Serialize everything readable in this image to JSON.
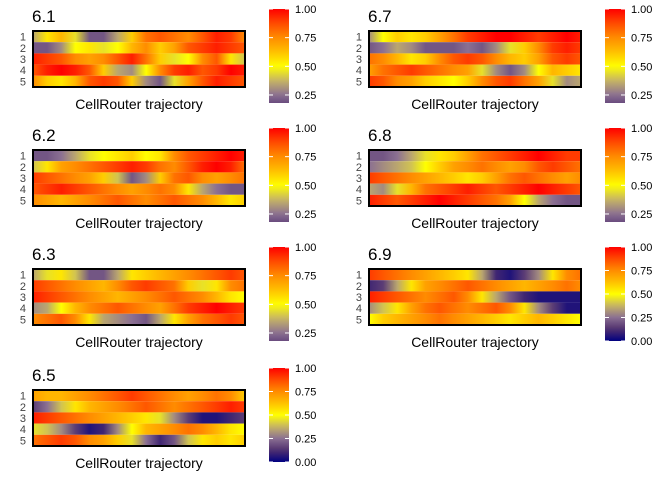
{
  "colors": {
    "stops": [
      "#000080",
      "#50306e",
      "#8b7092",
      "#c6b466",
      "#ffff00",
      "#ffc000",
      "#ff8c00",
      "#ff4a00",
      "#ff0000"
    ]
  },
  "chart_data": [
    {
      "type": "heatmap",
      "title": "6.1",
      "xlabel": "CellRouter trajectory",
      "y_categories": [
        "1",
        "2",
        "3",
        "4",
        "5"
      ],
      "colorbar": {
        "ticks": [
          "0.25",
          "0.50",
          "0.75",
          "1.00"
        ],
        "range": [
          0.18,
          1.0
        ]
      },
      "rows": [
        [
          0.35,
          0.55,
          0.65,
          0.45,
          0.2,
          0.2,
          0.35,
          0.6,
          0.8,
          0.85,
          0.8,
          0.75,
          0.85,
          0.95,
          0.9,
          0.75
        ],
        [
          0.2,
          0.2,
          0.3,
          0.5,
          0.55,
          0.45,
          0.5,
          0.65,
          0.75,
          0.6,
          0.7,
          0.85,
          0.9,
          0.95,
          0.9,
          0.85
        ],
        [
          0.95,
          0.9,
          0.85,
          0.75,
          0.7,
          0.75,
          0.85,
          0.95,
          0.8,
          0.6,
          0.45,
          0.5,
          0.75,
          0.85,
          0.55,
          0.4
        ],
        [
          0.85,
          0.95,
          1.0,
          0.95,
          0.85,
          0.6,
          0.35,
          0.3,
          0.5,
          0.75,
          0.9,
          0.95,
          0.85,
          0.9,
          1.0,
          0.95
        ],
        [
          0.75,
          0.6,
          0.55,
          0.65,
          0.85,
          0.9,
          0.85,
          0.6,
          0.3,
          0.2,
          0.45,
          0.7,
          0.85,
          0.95,
          0.9,
          0.85
        ]
      ]
    },
    {
      "type": "heatmap",
      "title": "6.7",
      "xlabel": "CellRouter trajectory",
      "y_categories": [
        "1",
        "2",
        "3",
        "4",
        "5"
      ],
      "colorbar": {
        "ticks": [
          "0.25",
          "0.50",
          "0.75",
          "1.00"
        ],
        "range": [
          0.18,
          1.0
        ]
      },
      "rows": [
        [
          0.3,
          0.5,
          0.6,
          0.55,
          0.6,
          0.7,
          0.8,
          0.9,
          0.95,
          1.0,
          1.0,
          0.95,
          0.9,
          0.95,
          1.0,
          0.95
        ],
        [
          0.2,
          0.25,
          0.35,
          0.3,
          0.2,
          0.2,
          0.2,
          0.25,
          0.2,
          0.3,
          0.45,
          0.6,
          0.75,
          0.9,
          0.95,
          0.9
        ],
        [
          0.8,
          0.75,
          0.65,
          0.55,
          0.6,
          0.75,
          0.85,
          0.9,
          0.85,
          0.75,
          0.65,
          0.6,
          0.7,
          0.85,
          0.9,
          0.85
        ],
        [
          0.7,
          0.8,
          0.85,
          0.9,
          0.85,
          0.8,
          0.75,
          0.7,
          0.45,
          0.3,
          0.2,
          0.3,
          0.5,
          0.65,
          0.6,
          0.55
        ],
        [
          0.9,
          0.85,
          0.75,
          0.7,
          0.6,
          0.55,
          0.5,
          0.6,
          0.75,
          0.85,
          0.9,
          0.8,
          0.7,
          0.45,
          0.3,
          0.35
        ]
      ]
    },
    {
      "type": "heatmap",
      "title": "6.2",
      "xlabel": "CellRouter trajectory",
      "y_categories": [
        "1",
        "2",
        "3",
        "4",
        "5"
      ],
      "colorbar": {
        "ticks": [
          "0.25",
          "0.50",
          "0.75",
          "1.00"
        ],
        "range": [
          0.18,
          1.0
        ]
      },
      "rows": [
        [
          0.2,
          0.2,
          0.25,
          0.35,
          0.45,
          0.5,
          0.55,
          0.6,
          0.5,
          0.55,
          0.75,
          0.85,
          0.9,
          0.95,
          1.0,
          0.95
        ],
        [
          0.4,
          0.55,
          0.7,
          0.75,
          0.8,
          0.85,
          0.9,
          0.95,
          0.9,
          0.8,
          0.75,
          0.85,
          0.95,
          1.0,
          0.95,
          0.8
        ],
        [
          0.9,
          0.85,
          0.8,
          0.75,
          0.7,
          0.6,
          0.4,
          0.2,
          0.3,
          0.6,
          0.8,
          0.85,
          0.75,
          0.7,
          0.75,
          0.8
        ],
        [
          0.85,
          0.9,
          0.95,
          0.9,
          0.85,
          0.8,
          0.75,
          0.7,
          0.75,
          0.8,
          0.75,
          0.55,
          0.35,
          0.25,
          0.2,
          0.2
        ],
        [
          0.75,
          0.7,
          0.65,
          0.7,
          0.75,
          0.8,
          0.85,
          0.8,
          0.75,
          0.8,
          0.85,
          0.8,
          0.75,
          0.65,
          0.55,
          0.6
        ]
      ]
    },
    {
      "type": "heatmap",
      "title": "6.8",
      "xlabel": "CellRouter trajectory",
      "y_categories": [
        "1",
        "2",
        "3",
        "4",
        "5"
      ],
      "colorbar": {
        "ticks": [
          "0.25",
          "0.50",
          "0.75",
          "1.00"
        ],
        "range": [
          0.18,
          1.0
        ]
      },
      "rows": [
        [
          0.2,
          0.2,
          0.25,
          0.35,
          0.45,
          0.55,
          0.6,
          0.7,
          0.8,
          0.85,
          0.9,
          0.95,
          1.0,
          0.95,
          0.9,
          0.9
        ],
        [
          0.25,
          0.3,
          0.35,
          0.4,
          0.5,
          0.6,
          0.7,
          0.75,
          0.8,
          0.75,
          0.7,
          0.75,
          0.85,
          0.9,
          0.85,
          0.8
        ],
        [
          0.9,
          0.85,
          0.8,
          0.75,
          0.7,
          0.65,
          0.6,
          0.55,
          0.6,
          0.7,
          0.8,
          0.85,
          0.8,
          0.75,
          0.7,
          0.75
        ],
        [
          0.35,
          0.3,
          0.45,
          0.65,
          0.8,
          0.85,
          0.9,
          0.95,
          0.9,
          0.85,
          0.9,
          0.95,
          1.0,
          0.95,
          0.9,
          0.85
        ],
        [
          0.95,
          0.9,
          0.85,
          0.9,
          0.95,
          1.0,
          0.95,
          0.9,
          0.85,
          0.8,
          0.7,
          0.5,
          0.35,
          0.25,
          0.2,
          0.2
        ]
      ]
    },
    {
      "type": "heatmap",
      "title": "6.3",
      "xlabel": "CellRouter trajectory",
      "y_categories": [
        "1",
        "2",
        "3",
        "4",
        "5"
      ],
      "colorbar": {
        "ticks": [
          "0.25",
          "0.50",
          "0.75",
          "1.00"
        ],
        "range": [
          0.18,
          1.0
        ]
      },
      "rows": [
        [
          0.35,
          0.45,
          0.55,
          0.4,
          0.2,
          0.2,
          0.35,
          0.55,
          0.6,
          0.65,
          0.7,
          0.75,
          0.8,
          0.85,
          0.9,
          0.85
        ],
        [
          0.9,
          0.85,
          0.8,
          0.75,
          0.7,
          0.65,
          0.75,
          0.85,
          0.9,
          0.85,
          0.8,
          0.6,
          0.45,
          0.55,
          0.75,
          0.8
        ],
        [
          0.95,
          0.9,
          0.85,
          0.8,
          0.75,
          0.7,
          0.65,
          0.7,
          0.75,
          0.8,
          0.85,
          0.8,
          0.75,
          0.65,
          0.55,
          0.5
        ],
        [
          0.3,
          0.35,
          0.5,
          0.65,
          0.75,
          0.8,
          0.85,
          0.8,
          0.75,
          0.7,
          0.8,
          0.9,
          0.95,
          1.0,
          0.95,
          0.9
        ],
        [
          0.75,
          0.8,
          0.85,
          0.75,
          0.55,
          0.35,
          0.3,
          0.25,
          0.2,
          0.35,
          0.55,
          0.7,
          0.8,
          0.85,
          0.9,
          0.85
        ]
      ]
    },
    {
      "type": "heatmap",
      "title": "6.9",
      "xlabel": "CellRouter trajectory",
      "y_categories": [
        "1",
        "2",
        "3",
        "4",
        "5"
      ],
      "colorbar": {
        "ticks": [
          "0.00",
          "0.25",
          "0.50",
          "0.75",
          "1.00"
        ],
        "range": [
          0.0,
          1.0
        ]
      },
      "rows": [
        [
          0.9,
          0.85,
          0.8,
          0.75,
          0.7,
          0.65,
          0.6,
          0.55,
          0.35,
          0.1,
          0.05,
          0.15,
          0.3,
          0.55,
          0.75,
          0.8
        ],
        [
          0.1,
          0.15,
          0.35,
          0.55,
          0.7,
          0.75,
          0.8,
          0.85,
          0.8,
          0.75,
          0.7,
          0.65,
          0.7,
          0.75,
          0.8,
          0.75
        ],
        [
          0.95,
          0.9,
          0.85,
          0.8,
          0.75,
          0.8,
          0.85,
          0.75,
          0.55,
          0.35,
          0.2,
          0.1,
          0.05,
          0.05,
          0.05,
          0.05
        ],
        [
          0.3,
          0.4,
          0.55,
          0.7,
          0.8,
          0.85,
          0.8,
          0.75,
          0.8,
          0.85,
          0.75,
          0.55,
          0.3,
          0.15,
          0.05,
          0.05
        ],
        [
          0.5,
          0.6,
          0.65,
          0.7,
          0.75,
          0.8,
          0.75,
          0.7,
          0.65,
          0.6,
          0.55,
          0.6,
          0.65,
          0.6,
          0.55,
          0.5
        ]
      ]
    },
    {
      "type": "heatmap",
      "title": "6.5",
      "xlabel": "CellRouter trajectory",
      "y_categories": [
        "1",
        "2",
        "3",
        "4",
        "5"
      ],
      "colorbar": {
        "ticks": [
          "0.00",
          "0.25",
          "0.50",
          "0.75",
          "1.00"
        ],
        "range": [
          0.0,
          1.0
        ]
      },
      "rows": [
        [
          0.7,
          0.65,
          0.65,
          0.7,
          0.75,
          0.8,
          0.85,
          0.9,
          0.85,
          0.8,
          0.75,
          0.7,
          0.75,
          0.8,
          0.75,
          0.6
        ],
        [
          0.15,
          0.25,
          0.4,
          0.55,
          0.65,
          0.7,
          0.75,
          0.8,
          0.85,
          0.8,
          0.75,
          0.8,
          0.85,
          0.9,
          0.95,
          0.9
        ],
        [
          0.95,
          0.9,
          0.85,
          0.8,
          0.75,
          0.7,
          0.65,
          0.6,
          0.55,
          0.45,
          0.3,
          0.15,
          0.05,
          0.05,
          0.1,
          0.15
        ],
        [
          0.45,
          0.4,
          0.3,
          0.15,
          0.05,
          0.1,
          0.3,
          0.5,
          0.65,
          0.7,
          0.75,
          0.8,
          0.75,
          0.65,
          0.55,
          0.5
        ],
        [
          0.8,
          0.85,
          0.9,
          0.85,
          0.75,
          0.7,
          0.6,
          0.45,
          0.25,
          0.1,
          0.2,
          0.4,
          0.55,
          0.6,
          0.55,
          0.6
        ]
      ]
    }
  ]
}
